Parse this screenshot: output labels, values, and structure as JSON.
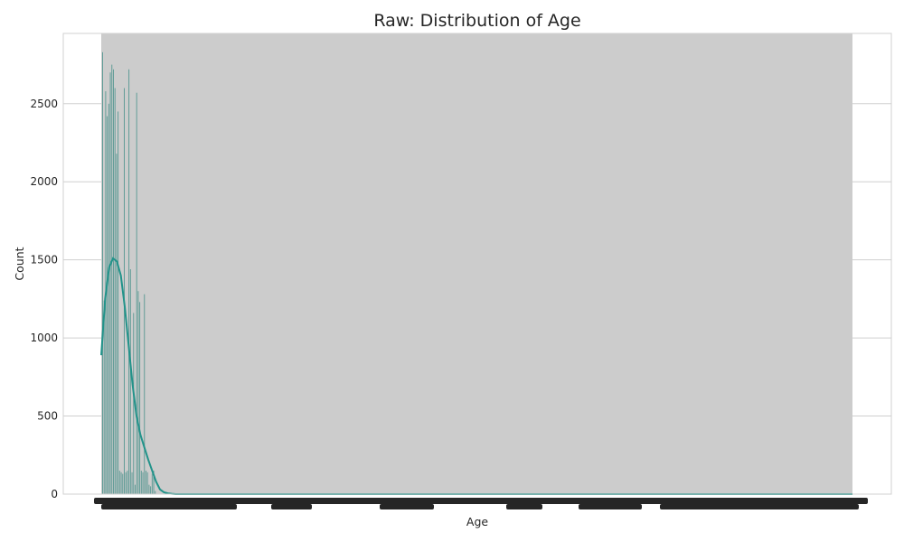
{
  "chart_data": {
    "type": "bar",
    "title": "Raw: Distribution of Age",
    "xlabel": "Age",
    "ylabel": "Count",
    "ylim": [
      0,
      2950
    ],
    "y_ticks": [
      0,
      500,
      1000,
      1500,
      2000,
      2500
    ],
    "grid": true,
    "legend": "none",
    "series": [
      {
        "kind": "histogram",
        "counts": [
          2830,
          1240,
          2580,
          2420,
          2500,
          2700,
          2750,
          2720,
          2600,
          2180,
          2450,
          150,
          140,
          130,
          2600,
          140,
          150,
          2720,
          1440,
          140,
          1160,
          60,
          2570,
          1300,
          1230,
          150,
          140,
          1280,
          150,
          140,
          60,
          50,
          130,
          150,
          20
        ]
      },
      {
        "kind": "kde",
        "values": [
          890,
          1250,
          1450,
          1510,
          1490,
          1400,
          1200,
          950,
          700,
          500,
          380,
          300,
          220,
          150,
          80,
          30,
          12,
          5,
          2,
          0,
          0,
          0,
          0,
          0,
          0
        ]
      }
    ],
    "colors": {
      "plot_background": "#cccccc",
      "bars": "#5b9a94",
      "kde_line": "#22938a",
      "grid": "#cfcfcf",
      "frame": "#d0d0d0",
      "x_tick_labels": "#262626"
    }
  }
}
